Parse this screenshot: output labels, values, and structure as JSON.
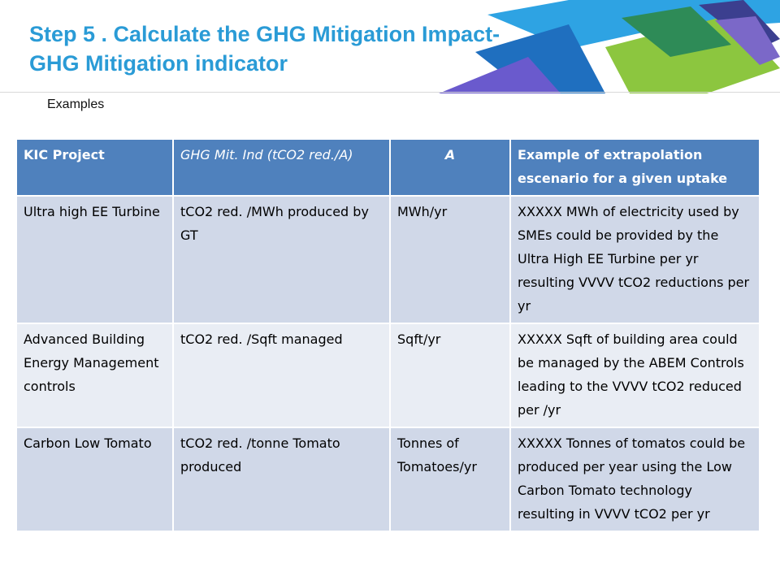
{
  "header": {
    "title": "Step 5 . Calculate the GHG Mitigation Impact- GHG Mitigation indicator",
    "subtitle": "Examples"
  },
  "colors": {
    "title": "#2a9bd6",
    "table_header": "#4f81bd",
    "row_odd": "#d0d8e8",
    "row_even": "#e9edf4",
    "banner": [
      "#2ea3e3",
      "#1f6fbf",
      "#8cc63f",
      "#2e8b57",
      "#6a5acd",
      "#3b3f8f"
    ]
  },
  "table": {
    "headers": [
      "KIC Project",
      "GHG Mit. Ind (tCO2 red./A)",
      "A",
      "Example of extrapolation escenario  for a given uptake"
    ],
    "rows": [
      [
        "Ultra high EE Turbine",
        "tCO2 red. /MWh produced by GT",
        "MWh/yr",
        "XXXXX MWh of electricity used by SMEs could be provided by the Ultra High EE Turbine per yr resulting VVVV tCO2 reductions per yr"
      ],
      [
        "Advanced Building Energy Management controls",
        "tCO2 red. /Sqft managed",
        "Sqft/yr",
        "XXXXX    Sqft of building area could be managed by the ABEM Controls leading to the VVVV tCO2 reduced per /yr"
      ],
      [
        "Carbon Low Tomato",
        "tCO2 red. /tonne Tomato produced",
        "Tonnes of Tomatoes/yr",
        "XXXXX Tonnes of tomatos could be produced  per year using the  Low Carbon Tomato  technology resulting in VVVV tCO2 per yr"
      ]
    ]
  }
}
